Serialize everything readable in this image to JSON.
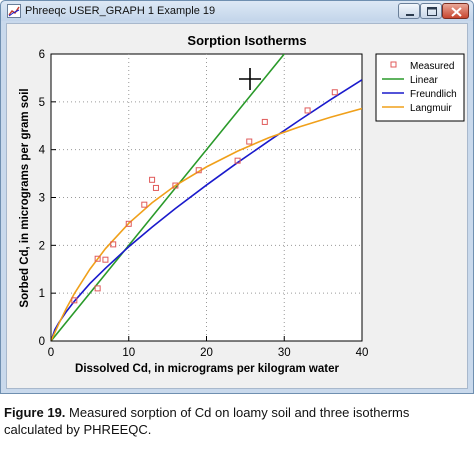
{
  "window": {
    "title": "Phreeqc USER_GRAPH 1 Example 19",
    "icon": "phreeqc-app-icon",
    "buttons": [
      "minimize-icon",
      "maximize-icon",
      "close-icon"
    ]
  },
  "colors": {
    "measured": "#e05a5a",
    "linear": "#2a9a2a",
    "freundlich": "#1a1acc",
    "langmuir": "#f0a01a"
  },
  "cursor": "crosshair-cursor-icon",
  "chart_data": {
    "type": "line",
    "title": "Sorption Isotherms",
    "xlabel": "Dissolved Cd, in micrograms per kilogram water",
    "ylabel": "Sorbed Cd, in micrograms per gram soil",
    "xlim": [
      0,
      40
    ],
    "ylim": [
      0,
      6
    ],
    "xticks": [
      0,
      10,
      20,
      30,
      40
    ],
    "yticks": [
      0,
      1,
      2,
      3,
      4,
      5,
      6
    ],
    "grid": true,
    "legend_position": "right",
    "series": [
      {
        "name": "Measured",
        "kind": "scatter",
        "marker": "open-square",
        "x": [
          3.0,
          6.0,
          6.0,
          7.0,
          8.0,
          10.0,
          12.0,
          13.0,
          13.5,
          16.0,
          19.0,
          24.0,
          25.5,
          27.5,
          33.0,
          36.5
        ],
        "y": [
          0.85,
          1.1,
          1.72,
          1.7,
          2.02,
          2.45,
          2.85,
          3.37,
          3.2,
          3.25,
          3.57,
          3.77,
          4.17,
          4.58,
          4.82,
          5.2
        ]
      },
      {
        "name": "Linear",
        "kind": "line",
        "x": [
          0,
          30
        ],
        "y": [
          0,
          6
        ]
      },
      {
        "name": "Freundlich",
        "kind": "line",
        "x": [
          0,
          0.5,
          1,
          2,
          3,
          5,
          7,
          10,
          13,
          16,
          20,
          24,
          28,
          32,
          36,
          40
        ],
        "y": [
          0,
          0.24,
          0.38,
          0.62,
          0.83,
          1.2,
          1.52,
          1.97,
          2.38,
          2.77,
          3.26,
          3.73,
          4.18,
          4.62,
          5.05,
          5.46
        ]
      },
      {
        "name": "Langmuir",
        "kind": "line",
        "x": [
          0,
          1,
          2,
          3,
          5,
          7,
          10,
          13,
          16,
          20,
          24,
          28,
          32,
          36,
          40
        ],
        "y": [
          0,
          0.36,
          0.69,
          0.99,
          1.5,
          1.93,
          2.46,
          2.89,
          3.25,
          3.64,
          3.97,
          4.25,
          4.48,
          4.68,
          4.86
        ]
      }
    ]
  },
  "caption": {
    "label": "Figure 19.",
    "text": " Measured sorption of Cd on loamy soil and three isotherms calculated by PHREEQC."
  }
}
